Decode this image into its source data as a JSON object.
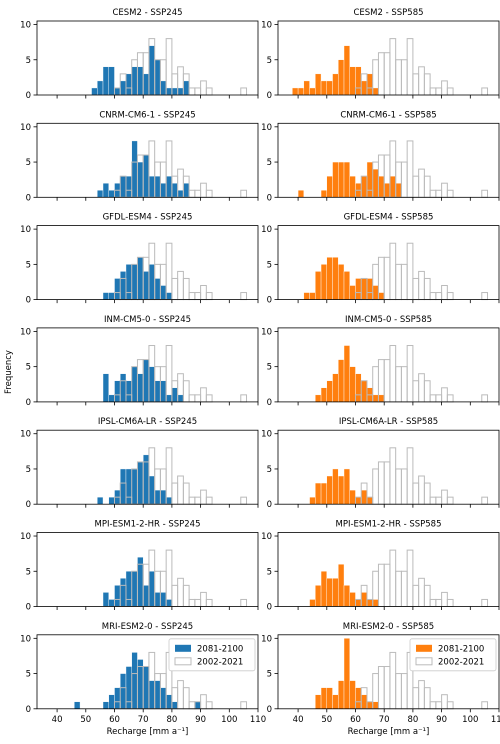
{
  "figure": {
    "ylabel": "Frequency",
    "xlabel": "Recharge [mm a⁻¹]",
    "legend": {
      "future": "2081-2100",
      "baseline": "2002-2021"
    },
    "colors": {
      "ssp245": "#1f77b4",
      "ssp585": "#ff7f0e",
      "baseline": "#bbbbbb"
    }
  },
  "chart_data": {
    "type": "histogram",
    "xlim": [
      33,
      110
    ],
    "ylim": [
      0,
      10.5
    ],
    "xticks": [
      40,
      50,
      60,
      70,
      80,
      90,
      100,
      110
    ],
    "yticks": [
      0,
      5,
      10
    ],
    "bin_width": 2,
    "grid": false,
    "legend_placement": "top-right (bottom row panels)",
    "baseline_series": {
      "name": "2002-2021",
      "bins": [
        [
          60,
          1
        ],
        [
          62,
          3
        ],
        [
          64,
          1
        ],
        [
          66,
          5
        ],
        [
          68,
          6
        ],
        [
          70,
          6
        ],
        [
          72,
          8
        ],
        [
          74,
          5
        ],
        [
          76,
          5
        ],
        [
          78,
          8
        ],
        [
          80,
          3
        ],
        [
          82,
          4
        ],
        [
          84,
          3
        ],
        [
          86,
          1
        ],
        [
          88,
          1
        ],
        [
          90,
          2
        ],
        [
          92,
          1
        ],
        [
          104,
          1
        ]
      ]
    },
    "panels": [
      {
        "model": "CESM2",
        "scenario": "SSP245",
        "title": "CESM2 - SSP245",
        "color_key": "ssp245",
        "bins": [
          [
            52,
            1
          ],
          [
            54,
            2
          ],
          [
            56,
            4
          ],
          [
            58,
            4
          ],
          [
            60,
            1
          ],
          [
            62,
            2
          ],
          [
            64,
            3
          ],
          [
            66,
            4
          ],
          [
            68,
            4
          ],
          [
            70,
            3
          ],
          [
            72,
            7
          ],
          [
            74,
            5
          ],
          [
            76,
            2
          ],
          [
            78,
            1
          ],
          [
            80,
            1
          ],
          [
            82,
            1
          ],
          [
            84,
            2
          ]
        ]
      },
      {
        "model": "CESM2",
        "scenario": "SSP585",
        "title": "CESM2 - SSP585",
        "color_key": "ssp585",
        "bins": [
          [
            38,
            1
          ],
          [
            40,
            1
          ],
          [
            42,
            2
          ],
          [
            44,
            1
          ],
          [
            46,
            3
          ],
          [
            48,
            2
          ],
          [
            50,
            2
          ],
          [
            52,
            3
          ],
          [
            54,
            5
          ],
          [
            56,
            7
          ],
          [
            58,
            4
          ],
          [
            60,
            4
          ],
          [
            62,
            2
          ],
          [
            64,
            3
          ],
          [
            66,
            1
          ]
        ]
      },
      {
        "model": "CNRM-CM6-1",
        "scenario": "SSP245",
        "title": "CNRM-CM6-1 - SSP245",
        "color_key": "ssp245",
        "bins": [
          [
            54,
            1
          ],
          [
            56,
            2
          ],
          [
            58,
            1
          ],
          [
            60,
            2
          ],
          [
            62,
            3
          ],
          [
            64,
            3
          ],
          [
            66,
            8
          ],
          [
            68,
            5
          ],
          [
            70,
            6
          ],
          [
            72,
            3
          ],
          [
            74,
            3
          ],
          [
            76,
            2
          ],
          [
            78,
            3
          ],
          [
            80,
            2
          ],
          [
            82,
            1
          ],
          [
            84,
            2
          ]
        ]
      },
      {
        "model": "CNRM-CM6-1",
        "scenario": "SSP585",
        "title": "CNRM-CM6-1 - SSP585",
        "color_key": "ssp585",
        "bins": [
          [
            40,
            1
          ],
          [
            48,
            1
          ],
          [
            50,
            3
          ],
          [
            52,
            5
          ],
          [
            54,
            5
          ],
          [
            56,
            5
          ],
          [
            58,
            3
          ],
          [
            60,
            2
          ],
          [
            62,
            3
          ],
          [
            64,
            5
          ],
          [
            66,
            4
          ],
          [
            68,
            3
          ],
          [
            70,
            2
          ],
          [
            72,
            3
          ],
          [
            74,
            2
          ]
        ]
      },
      {
        "model": "GFDL-ESM4",
        "scenario": "SSP245",
        "title": "GFDL-ESM4 - SSP245",
        "color_key": "ssp245",
        "bins": [
          [
            56,
            1
          ],
          [
            58,
            1
          ],
          [
            60,
            3
          ],
          [
            62,
            4
          ],
          [
            64,
            5
          ],
          [
            66,
            5
          ],
          [
            68,
            6
          ],
          [
            70,
            4
          ],
          [
            72,
            5
          ],
          [
            74,
            3
          ],
          [
            76,
            2
          ],
          [
            78,
            1
          ]
        ]
      },
      {
        "model": "GFDL-ESM4",
        "scenario": "SSP585",
        "title": "GFDL-ESM4 - SSP585",
        "color_key": "ssp585",
        "bins": [
          [
            42,
            1
          ],
          [
            44,
            1
          ],
          [
            46,
            4
          ],
          [
            48,
            5
          ],
          [
            50,
            6
          ],
          [
            52,
            6
          ],
          [
            54,
            5
          ],
          [
            56,
            4
          ],
          [
            58,
            2
          ],
          [
            60,
            3
          ],
          [
            62,
            3
          ],
          [
            64,
            3
          ],
          [
            66,
            2
          ],
          [
            68,
            1
          ]
        ]
      },
      {
        "model": "INM-CM5-0",
        "scenario": "SSP245",
        "title": "INM-CM5-0 - SSP245",
        "color_key": "ssp245",
        "bins": [
          [
            56,
            4
          ],
          [
            58,
            1
          ],
          [
            60,
            3
          ],
          [
            62,
            4
          ],
          [
            64,
            3
          ],
          [
            66,
            5
          ],
          [
            68,
            4
          ],
          [
            70,
            6
          ],
          [
            72,
            5
          ],
          [
            74,
            3
          ],
          [
            76,
            3
          ],
          [
            78,
            1
          ],
          [
            80,
            2
          ],
          [
            82,
            1
          ]
        ]
      },
      {
        "model": "INM-CM5-0",
        "scenario": "SSP585",
        "title": "INM-CM5-0 - SSP585",
        "color_key": "ssp585",
        "bins": [
          [
            46,
            1
          ],
          [
            48,
            2
          ],
          [
            50,
            3
          ],
          [
            52,
            4
          ],
          [
            54,
            6
          ],
          [
            56,
            8
          ],
          [
            58,
            5
          ],
          [
            60,
            4
          ],
          [
            62,
            3
          ],
          [
            64,
            2
          ],
          [
            66,
            1
          ],
          [
            68,
            1
          ]
        ]
      },
      {
        "model": "IPSL-CM6A-LR",
        "scenario": "SSP245",
        "title": "IPSL-CM6A-LR - SSP245",
        "color_key": "ssp245",
        "bins": [
          [
            54,
            1
          ],
          [
            58,
            1
          ],
          [
            60,
            2
          ],
          [
            62,
            5
          ],
          [
            64,
            5
          ],
          [
            66,
            5
          ],
          [
            68,
            6
          ],
          [
            70,
            7
          ],
          [
            72,
            4
          ],
          [
            74,
            2
          ],
          [
            76,
            2
          ],
          [
            78,
            1
          ]
        ]
      },
      {
        "model": "IPSL-CM6A-LR",
        "scenario": "SSP585",
        "title": "IPSL-CM6A-LR - SSP585",
        "color_key": "ssp585",
        "bins": [
          [
            44,
            1
          ],
          [
            46,
            3
          ],
          [
            48,
            3
          ],
          [
            50,
            4
          ],
          [
            52,
            5
          ],
          [
            54,
            4
          ],
          [
            56,
            5
          ],
          [
            58,
            2
          ],
          [
            60,
            1
          ],
          [
            62,
            2
          ],
          [
            64,
            1
          ]
        ]
      },
      {
        "model": "MPI-ESM1-2-HR",
        "scenario": "SSP245",
        "title": "MPI-ESM1-2-HR - SSP245",
        "color_key": "ssp245",
        "bins": [
          [
            56,
            2
          ],
          [
            58,
            1
          ],
          [
            60,
            3
          ],
          [
            62,
            4
          ],
          [
            64,
            5
          ],
          [
            66,
            5
          ],
          [
            68,
            7
          ],
          [
            70,
            3
          ],
          [
            72,
            5
          ],
          [
            74,
            2
          ],
          [
            76,
            2
          ],
          [
            78,
            1
          ]
        ]
      },
      {
        "model": "MPI-ESM1-2-HR",
        "scenario": "SSP585",
        "title": "MPI-ESM1-2-HR - SSP585",
        "color_key": "ssp585",
        "bins": [
          [
            44,
            1
          ],
          [
            46,
            3
          ],
          [
            48,
            5
          ],
          [
            50,
            4
          ],
          [
            52,
            4
          ],
          [
            54,
            6
          ],
          [
            56,
            3
          ],
          [
            58,
            2
          ],
          [
            60,
            1
          ],
          [
            62,
            2
          ],
          [
            64,
            1
          ],
          [
            66,
            1
          ]
        ]
      },
      {
        "model": "MRI-ESM2-0",
        "scenario": "SSP245",
        "title": "MRI-ESM2-0 - SSP245",
        "color_key": "ssp245",
        "bins": [
          [
            46,
            1
          ],
          [
            56,
            1
          ],
          [
            58,
            2
          ],
          [
            60,
            3
          ],
          [
            62,
            5
          ],
          [
            64,
            6
          ],
          [
            66,
            8
          ],
          [
            68,
            7
          ],
          [
            70,
            6
          ],
          [
            72,
            4
          ],
          [
            74,
            4
          ],
          [
            76,
            3
          ],
          [
            78,
            2
          ],
          [
            80,
            1
          ],
          [
            88,
            1
          ]
        ]
      },
      {
        "model": "MRI-ESM2-0",
        "scenario": "SSP585",
        "title": "MRI-ESM2-0 - SSP585",
        "color_key": "ssp585",
        "bins": [
          [
            46,
            2
          ],
          [
            48,
            3
          ],
          [
            50,
            3
          ],
          [
            52,
            2
          ],
          [
            54,
            4
          ],
          [
            56,
            10
          ],
          [
            58,
            4
          ],
          [
            60,
            3
          ],
          [
            62,
            2
          ],
          [
            64,
            1
          ],
          [
            66,
            1
          ]
        ]
      }
    ]
  }
}
